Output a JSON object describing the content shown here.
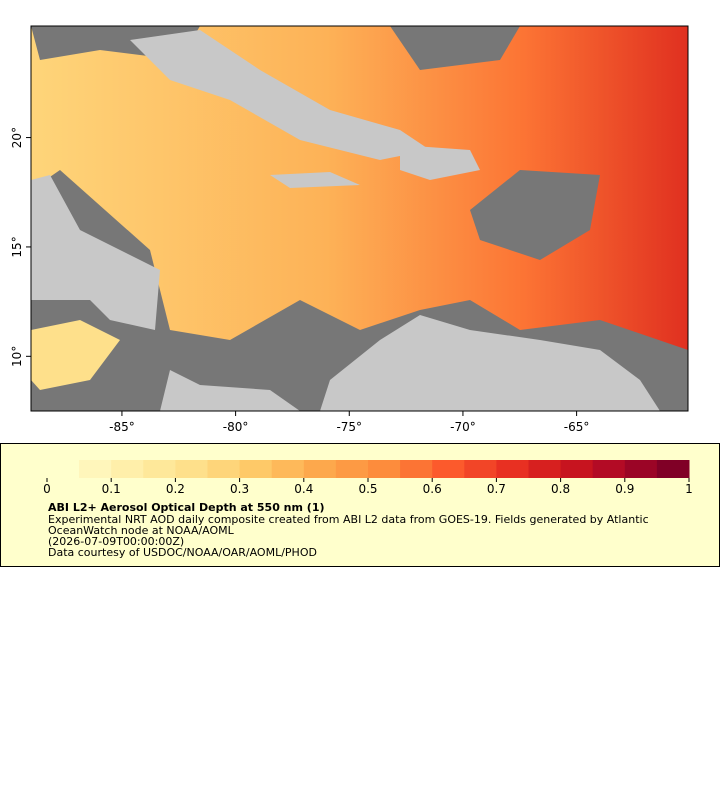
{
  "map": {
    "xlim": [
      -89,
      -60.1
    ],
    "ylim": [
      7.5,
      25.1
    ],
    "xticks": [
      {
        "value": -85,
        "label": "-85°"
      },
      {
        "value": -80,
        "label": "-80°"
      },
      {
        "value": -75,
        "label": "-75°"
      },
      {
        "value": -70,
        "label": "-70°"
      },
      {
        "value": -65,
        "label": "-65°"
      }
    ],
    "yticks": [
      {
        "value": 10,
        "label": "10°"
      },
      {
        "value": 15,
        "label": "15°"
      },
      {
        "value": 20,
        "label": "20°"
      }
    ]
  },
  "colorbar": {
    "range": [
      0,
      1
    ],
    "ticks": [
      0,
      0.1,
      0.2,
      0.3,
      0.4,
      0.5,
      0.6,
      0.7,
      0.8,
      0.9,
      1
    ],
    "colors": [
      "#ffffcc",
      "#fff6bb",
      "#ffefaa",
      "#fee89a",
      "#fee08b",
      "#fed57a",
      "#fec968",
      "#feb95a",
      "#fda84c",
      "#fd9a44",
      "#fd8c3c",
      "#fc7434",
      "#fc5a2c",
      "#f24527",
      "#e83022",
      "#d7201f",
      "#c7141f",
      "#b30b25",
      "#9b0526",
      "#800026"
    ]
  },
  "legend": {
    "title": "ABI L2+ Aerosol Optical Depth at 550 nm (1)",
    "lines": [
      "Experimental NRT AOD daily composite created from ABI L2 data from GOES-19. Fields generated by Atlantic",
      "OceanWatch node at NOAA/AOML",
      "(2026-07-09T00:00:00Z)",
      "Data courtesy of USDOC/NOAA/OAR/AOML/PHOD"
    ]
  }
}
